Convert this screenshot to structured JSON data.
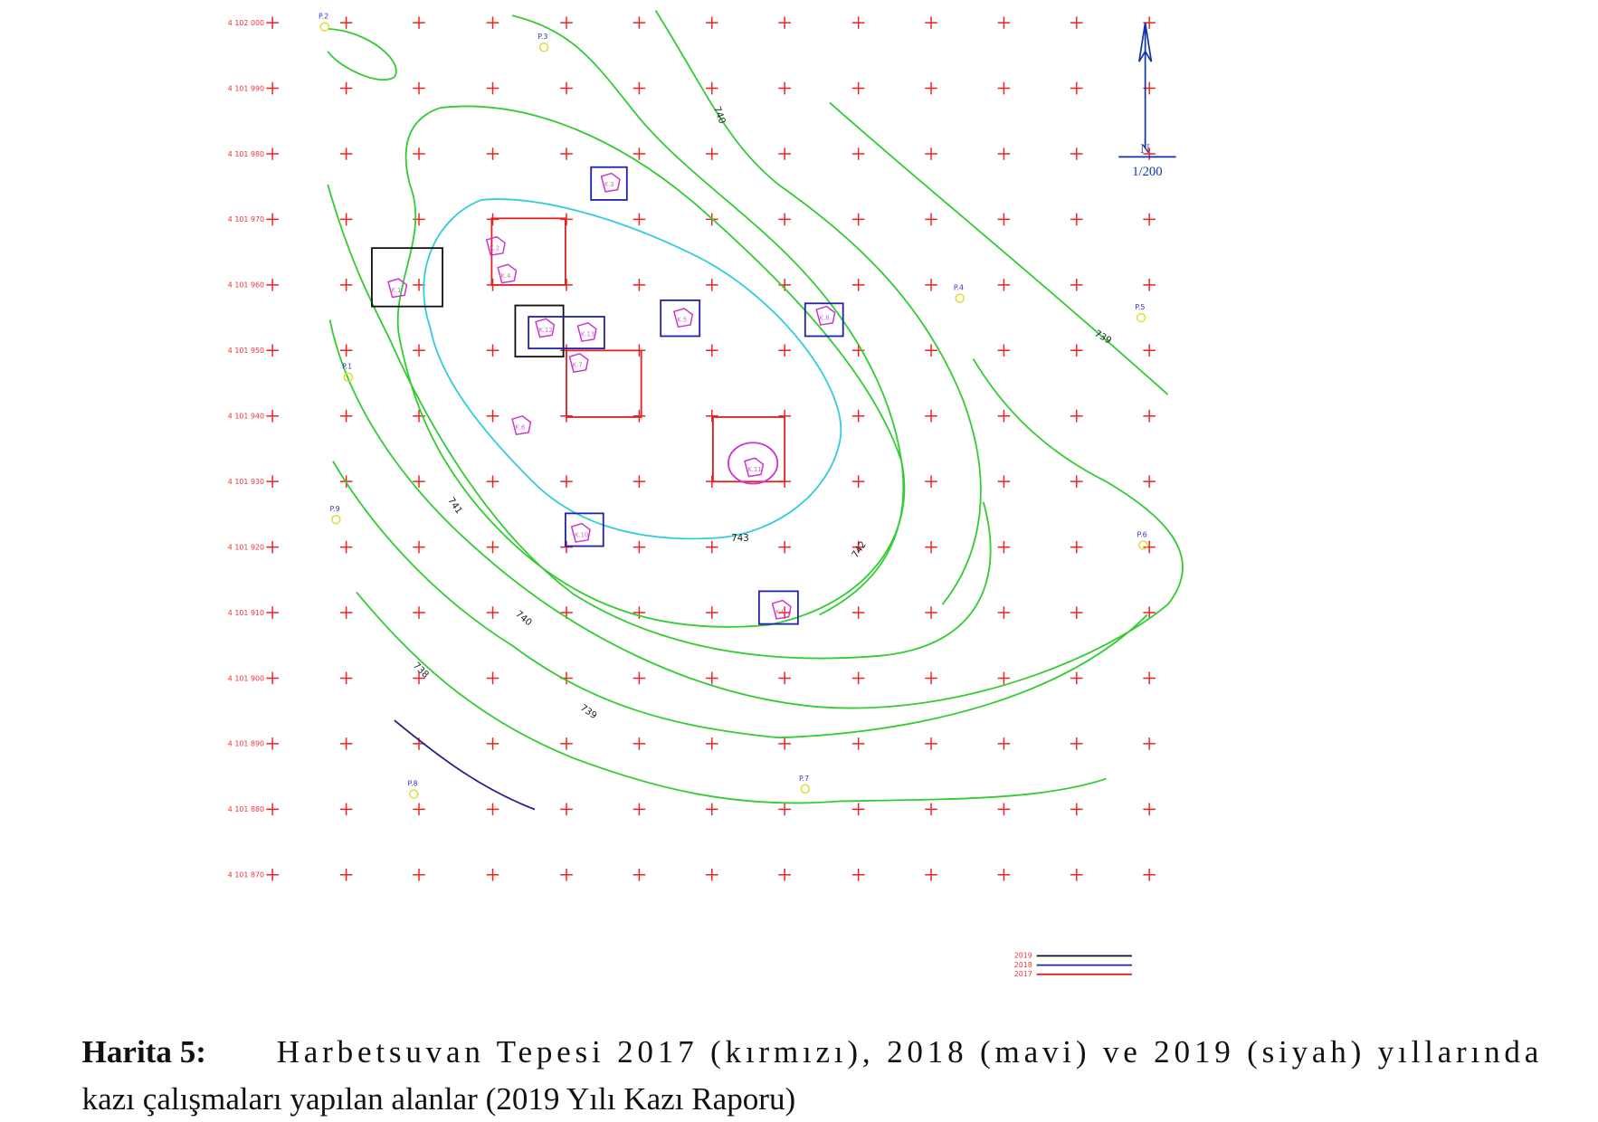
{
  "map": {
    "north": "N",
    "scale": "1/200",
    "rows": [
      "4 102 000",
      "4 101 990",
      "4 101 980",
      "4 101 970",
      "4 101 960",
      "4 101 950",
      "4 101 940",
      "4 101 930",
      "4 101 920",
      "4 101 910",
      "4 101 900",
      "4 101 890",
      "4 101 880",
      "4 101 870"
    ],
    "contours": [
      "740",
      "743",
      "742",
      "741",
      "740",
      "739",
      "738",
      "739"
    ],
    "points": [
      "P.1",
      "P.2",
      "P.3",
      "P.4",
      "P.5",
      "P.6",
      "P.7",
      "P.8",
      "P.9"
    ],
    "trenches": [
      "K.1",
      "K.2",
      "K.3",
      "K.4",
      "K.5",
      "K.6",
      "K.7",
      "K.8",
      "K.9",
      "K.10",
      "K.11",
      "K.12",
      "K.13"
    ],
    "legend": [
      "2019",
      "2018",
      "2017"
    ]
  },
  "caption": {
    "label": "Harita 5:",
    "line1": "Harbetsuvan Tepesi 2017 (kırmızı), 2018 (mavi) ve 2019 (siyah) yıllarında",
    "line2": "kazı çalışmaları yapılan alanlar (2019 Yılı Kazı Raporu)"
  }
}
